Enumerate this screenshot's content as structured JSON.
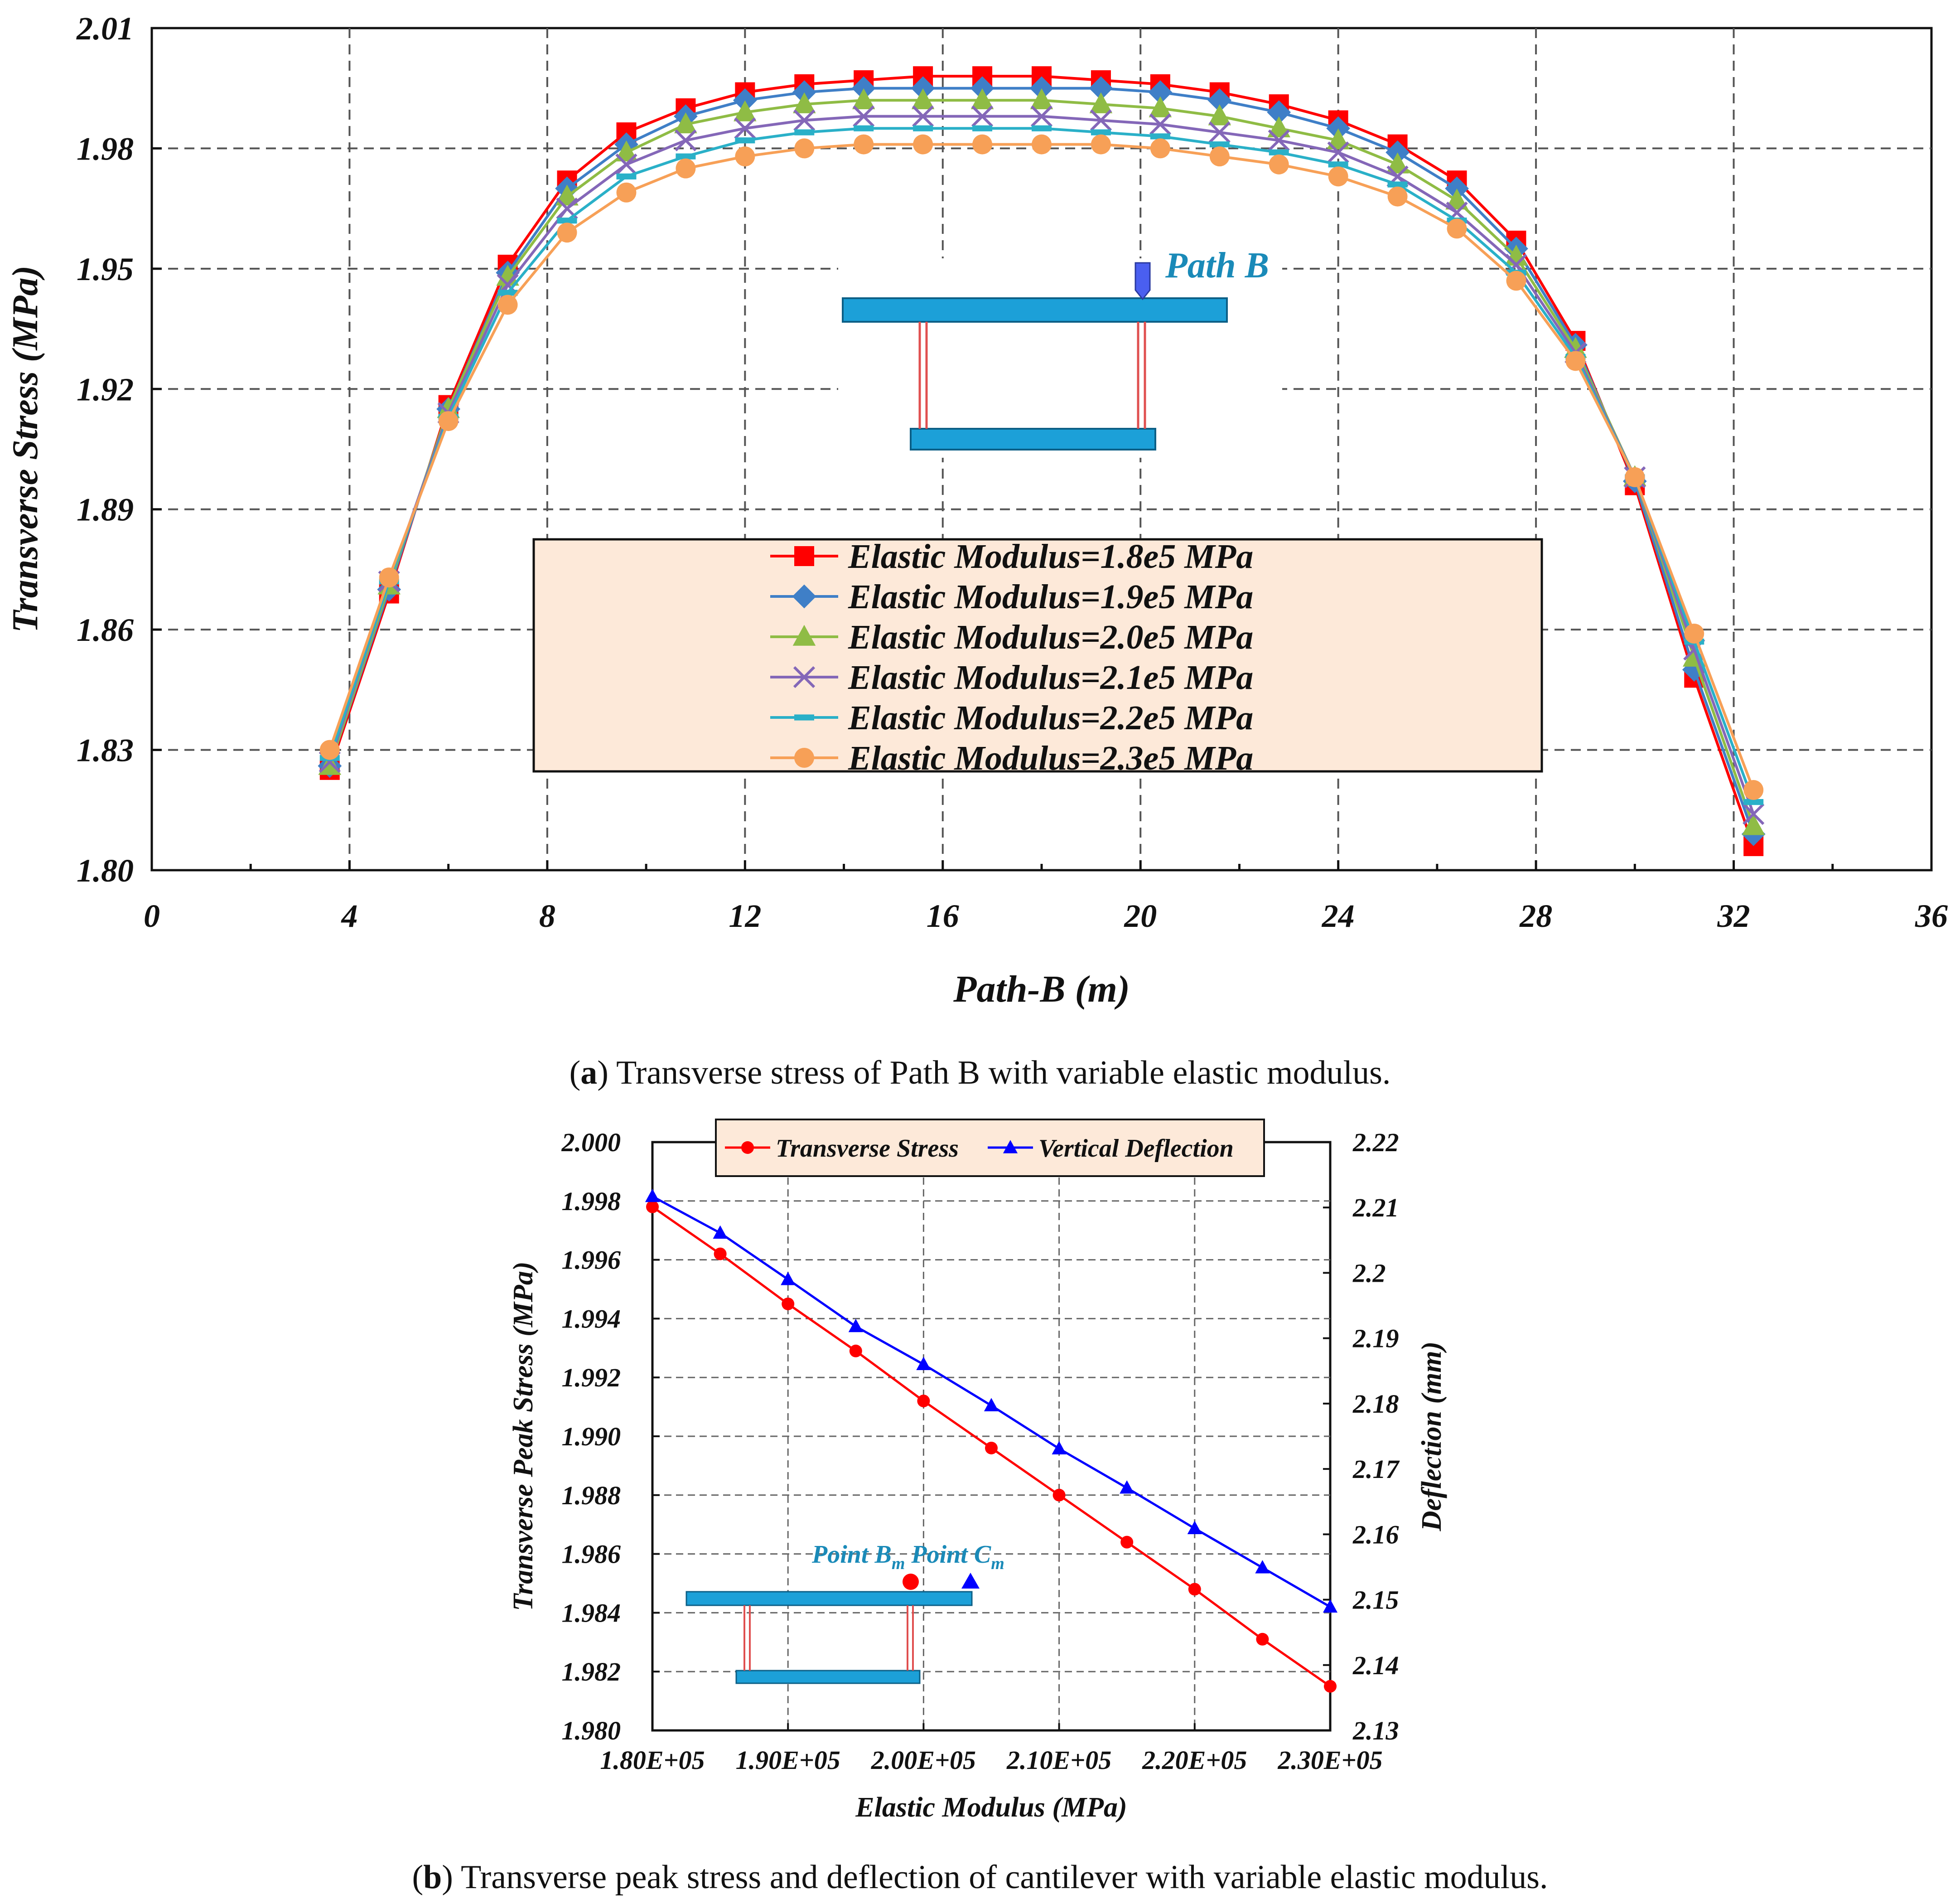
{
  "captions": {
    "a_label": "a",
    "a_text": "Transverse stress of Path B with variable elastic modulus.",
    "b_label": "b",
    "b_text": "Transverse peak stress and deflection of cantilever with variable elastic modulus."
  },
  "colors": {
    "s1": "#ff0000",
    "s2": "#3f7fc7",
    "s3": "#8fbc45",
    "s4": "#8467b8",
    "s5": "#2ab0c8",
    "s6": "#f7a057",
    "legend_bg": "#fde9d9",
    "bridge": "#1ca0d8",
    "pier": "#e05050",
    "stress": "#ff0000",
    "deflection": "#0000ff"
  },
  "chart_data": [
    {
      "type": "line",
      "title": "",
      "xlabel": "Path-B (m)",
      "ylabel": "Transverse Stress (MPa)",
      "xlim": [
        0,
        36
      ],
      "ylim": [
        1.8,
        2.01
      ],
      "x_ticks": [
        "0",
        "4",
        "8",
        "12",
        "16",
        "20",
        "24",
        "28",
        "32",
        "36"
      ],
      "y_ticks": [
        "1.80",
        "1.83",
        "1.86",
        "1.89",
        "1.92",
        "1.95",
        "1.98",
        "2.01"
      ],
      "grid": true,
      "inset_label": "Path B",
      "x": [
        3.6,
        4.8,
        6.0,
        7.2,
        8.4,
        9.6,
        10.8,
        12.0,
        13.2,
        14.4,
        15.6,
        16.8,
        18.0,
        19.2,
        20.4,
        21.6,
        22.8,
        24.0,
        25.2,
        26.4,
        27.6,
        28.8,
        30.0,
        31.2,
        32.4
      ],
      "series": [
        {
          "name": "Elastic Modulus=1.8e5 MPa",
          "marker": "square",
          "values": [
            1.825,
            1.869,
            1.916,
            1.951,
            1.972,
            1.984,
            1.99,
            1.994,
            1.996,
            1.997,
            1.998,
            1.998,
            1.998,
            1.997,
            1.996,
            1.994,
            1.991,
            1.987,
            1.981,
            1.972,
            1.957,
            1.932,
            1.896,
            1.848,
            1.806
          ]
        },
        {
          "name": "Elastic Modulus=1.9e5 MPa",
          "marker": "diamond",
          "values": [
            1.826,
            1.87,
            1.915,
            1.949,
            1.97,
            1.981,
            1.988,
            1.992,
            1.994,
            1.995,
            1.995,
            1.995,
            1.995,
            1.995,
            1.994,
            1.992,
            1.989,
            1.985,
            1.979,
            1.97,
            1.955,
            1.931,
            1.897,
            1.85,
            1.809
          ]
        },
        {
          "name": "Elastic Modulus=2.0e5 MPa",
          "marker": "triangle",
          "values": [
            1.826,
            1.871,
            1.915,
            1.948,
            1.968,
            1.979,
            1.986,
            1.989,
            1.991,
            1.992,
            1.992,
            1.992,
            1.992,
            1.991,
            1.99,
            1.988,
            1.985,
            1.982,
            1.976,
            1.967,
            1.953,
            1.93,
            1.898,
            1.853,
            1.811
          ]
        },
        {
          "name": "Elastic Modulus=2.1e5 MPa",
          "marker": "x",
          "values": [
            1.827,
            1.872,
            1.914,
            1.946,
            1.965,
            1.976,
            1.982,
            1.985,
            1.987,
            1.988,
            1.988,
            1.988,
            1.988,
            1.987,
            1.986,
            1.984,
            1.982,
            1.979,
            1.973,
            1.964,
            1.951,
            1.929,
            1.898,
            1.855,
            1.814
          ]
        },
        {
          "name": "Elastic Modulus=2.2e5 MPa",
          "marker": "dash",
          "values": [
            1.828,
            1.872,
            1.913,
            1.944,
            1.962,
            1.973,
            1.978,
            1.982,
            1.984,
            1.985,
            1.985,
            1.985,
            1.985,
            1.984,
            1.983,
            1.981,
            1.979,
            1.976,
            1.971,
            1.962,
            1.949,
            1.928,
            1.898,
            1.857,
            1.817
          ]
        },
        {
          "name": "Elastic Modulus=2.3e5 MPa",
          "marker": "circle",
          "values": [
            1.83,
            1.873,
            1.912,
            1.941,
            1.959,
            1.969,
            1.975,
            1.978,
            1.98,
            1.981,
            1.981,
            1.981,
            1.981,
            1.981,
            1.98,
            1.978,
            1.976,
            1.973,
            1.968,
            1.96,
            1.947,
            1.927,
            1.898,
            1.859,
            1.82
          ]
        }
      ]
    },
    {
      "type": "line",
      "title": "",
      "xlabel": "Elastic Modulus (MPa)",
      "ylabel": "Transverse Peak Stress (MPa)",
      "y2label": "Deflection (mm)",
      "xlim": [
        180000,
        230000
      ],
      "ylim": [
        1.98,
        2.0
      ],
      "y2lim": [
        2.13,
        2.22
      ],
      "x_ticks": [
        "1.80E+05",
        "1.90E+05",
        "2.00E+05",
        "2.10E+05",
        "2.20E+05",
        "2.30E+05"
      ],
      "y_ticks": [
        "1.980",
        "1.982",
        "1.984",
        "1.986",
        "1.988",
        "1.990",
        "1.992",
        "1.994",
        "1.996",
        "1.998",
        "2.000"
      ],
      "y2_ticks": [
        "2.13",
        "2.14",
        "2.15",
        "2.16",
        "2.17",
        "2.18",
        "2.19",
        "2.2",
        "2.21",
        "2.22"
      ],
      "grid": true,
      "inset_labels": [
        "Point B",
        "m",
        "Point C",
        "m"
      ],
      "x": [
        180000,
        185000,
        190000,
        195000,
        200000,
        205000,
        210000,
        215000,
        220000,
        225000,
        230000
      ],
      "series": [
        {
          "name": "Transverse Stress",
          "axis": "left",
          "marker": "circle",
          "values": [
            1.9978,
            1.9962,
            1.9945,
            1.9929,
            1.9912,
            1.9896,
            1.988,
            1.9864,
            1.9848,
            1.9831,
            1.9815
          ]
        },
        {
          "name": "Vertical Deflection",
          "axis": "right",
          "marker": "triangle",
          "values": [
            2.2117,
            2.2061,
            2.199,
            2.1918,
            2.186,
            2.1797,
            2.1731,
            2.1671,
            2.1609,
            2.1549,
            2.1489
          ]
        }
      ]
    }
  ]
}
